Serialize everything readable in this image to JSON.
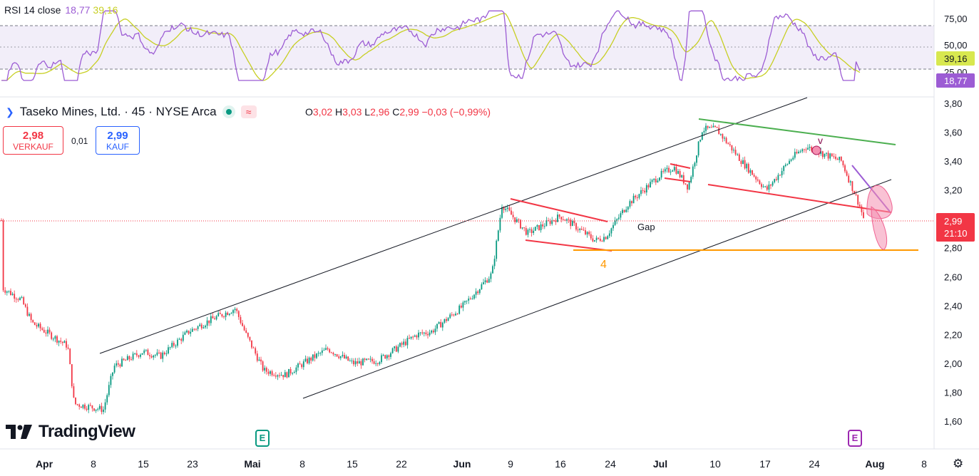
{
  "rsi": {
    "label": "RSI 14 close",
    "rsi_value": "18,77",
    "ma_value": "39,16",
    "levels": [
      "75,00",
      "50,00",
      "25,00"
    ],
    "rsi_color": "#9c5cd4",
    "ma_color": "#c7cf23"
  },
  "symbol": {
    "name": "Taseko Mines, Ltd. · 45 · NYSE Arca",
    "ohlc": {
      "o_label": "O",
      "o": "3,02",
      "h_label": "H",
      "h": "3,03",
      "l_label": "L",
      "l": "2,96",
      "c_label": "C",
      "c": "2,99",
      "change": "−0,03 (−0,99%)"
    }
  },
  "trade": {
    "sell_price": "2,98",
    "sell_label": "VERKAUF",
    "spread": "0,01",
    "buy_price": "2,99",
    "buy_label": "KAUF"
  },
  "price_badge": {
    "price": "2,99",
    "countdown": "21:10"
  },
  "brand": "TradingView",
  "earnings_marker": "E",
  "annotations": {
    "gap": "Gap",
    "wave4": "4",
    "wave_v": "v"
  },
  "chart_data": {
    "type": "candlestick",
    "y_axis_ticks": [
      "3,80",
      "3,60",
      "3,40",
      "3,20",
      "3,00",
      "2,80",
      "2,60",
      "2,40",
      "2,20",
      "2,00",
      "1,80",
      "1,60"
    ],
    "ylim": [
      1.52,
      3.82
    ],
    "x_axis_ticks": [
      "Apr",
      "8",
      "15",
      "23",
      "Mai",
      "8",
      "15",
      "22",
      "Jun",
      "9",
      "16",
      "24",
      "Jul",
      "10",
      "17",
      "24",
      "Aug",
      "8"
    ],
    "close_path": [
      [
        "Apr 1",
        2.52
      ],
      [
        "Apr 3",
        2.44
      ],
      [
        "Apr 4",
        2.28
      ],
      [
        "Apr 7",
        2.12
      ],
      [
        "Apr 8",
        1.72
      ],
      [
        "Apr 9",
        1.68
      ],
      [
        "Apr 10",
        1.98
      ],
      [
        "Apr 14",
        2.08
      ],
      [
        "Apr 17",
        2.05
      ],
      [
        "Apr 22",
        2.22
      ],
      [
        "Apr 25",
        2.3
      ],
      [
        "Apr 29",
        2.38
      ],
      [
        "Apr 30",
        2.2
      ],
      [
        "May 2",
        1.95
      ],
      [
        "May 6",
        1.92
      ],
      [
        "May 9",
        2.02
      ],
      [
        "May 12",
        2.1
      ],
      [
        "May 15",
        2.0
      ],
      [
        "May 20",
        2.02
      ],
      [
        "May 23",
        2.1
      ],
      [
        "May 28",
        2.2
      ],
      [
        "May 30",
        2.22
      ],
      [
        "Jun 4",
        2.4
      ],
      [
        "Jun 6",
        2.62
      ],
      [
        "Jun 9",
        3.1
      ],
      [
        "Jun 11",
        2.9
      ],
      [
        "Jun 16",
        3.02
      ],
      [
        "Jun 20",
        2.85
      ],
      [
        "Jun 24",
        2.88
      ],
      [
        "Jun 26",
        3.1
      ],
      [
        "Jun 30",
        3.3
      ],
      [
        "Jul 2",
        3.36
      ],
      [
        "Jul 4",
        3.22
      ],
      [
        "Jul 7",
        3.62
      ],
      [
        "Jul 10",
        3.62
      ],
      [
        "Jul 14",
        3.4
      ],
      [
        "Jul 17",
        3.2
      ],
      [
        "Jul 21",
        3.42
      ],
      [
        "Jul 23",
        3.5
      ],
      [
        "Jul 28",
        3.4
      ],
      [
        "Jul 30",
        3.1
      ],
      [
        "Jul 31",
        2.99
      ]
    ],
    "horizontal_level": 2.78,
    "rsi_range": [
      0,
      100
    ],
    "rsi_levels": [
      75,
      50,
      25
    ],
    "rsi_last": 18.77,
    "rsi_ma_last": 39.16
  }
}
